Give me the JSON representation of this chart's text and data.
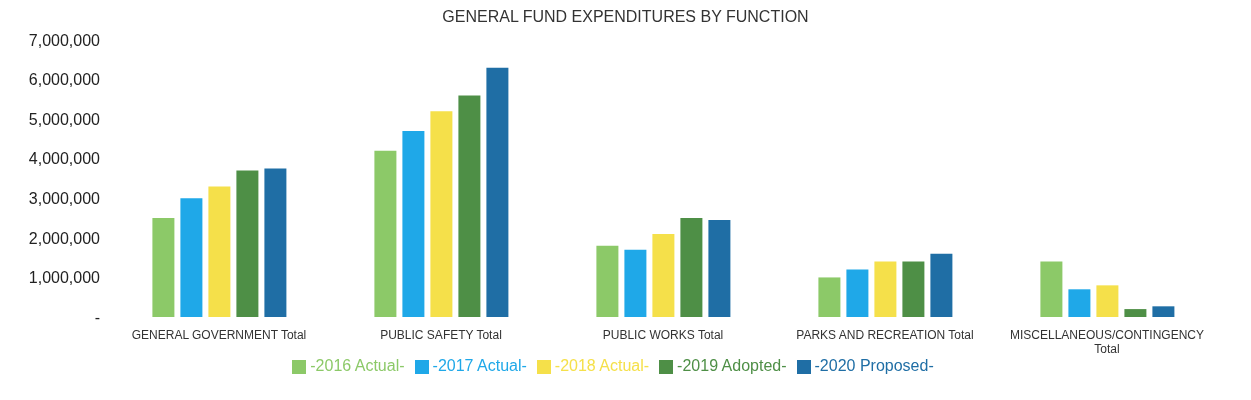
{
  "chart_data": {
    "type": "bar",
    "title": "GENERAL FUND EXPENDITURES BY FUNCTION",
    "categories": [
      "GENERAL GOVERNMENT Total",
      "PUBLIC SAFETY Total",
      "PUBLIC WORKS Total",
      "PARKS AND RECREATION Total",
      "MISCELLANEOUS/CONTINGENCY Total"
    ],
    "series": [
      {
        "name": "-2016 Actual-",
        "color": "#8cc968",
        "values": [
          2500000,
          4200000,
          1800000,
          1000000,
          1400000
        ]
      },
      {
        "name": "-2017 Actual-",
        "color": "#1fa8e8",
        "values": [
          3000000,
          4700000,
          1700000,
          1200000,
          700000
        ]
      },
      {
        "name": "-2018 Actual-",
        "color": "#f5e04a",
        "values": [
          3300000,
          5200000,
          2100000,
          1400000,
          800000
        ]
      },
      {
        "name": "-2019 Adopted-",
        "color": "#4e8f46",
        "values": [
          3700000,
          5600000,
          2500000,
          1400000,
          200000
        ]
      },
      {
        "name": "-2020 Proposed-",
        "color": "#1f6ea5",
        "values": [
          3750000,
          6300000,
          2450000,
          1600000,
          270000
        ]
      }
    ],
    "ylim": [
      0,
      7000000
    ],
    "yticks": [
      {
        "value": 0,
        "label": "-"
      },
      {
        "value": 1000000,
        "label": "1,000,000"
      },
      {
        "value": 2000000,
        "label": "2,000,000"
      },
      {
        "value": 3000000,
        "label": "3,000,000"
      },
      {
        "value": 4000000,
        "label": "4,000,000"
      },
      {
        "value": 5000000,
        "label": "5,000,000"
      },
      {
        "value": 6000000,
        "label": "6,000,000"
      },
      {
        "value": 7000000,
        "label": "7,000,000"
      }
    ],
    "grid": false,
    "legend": "bottom"
  }
}
